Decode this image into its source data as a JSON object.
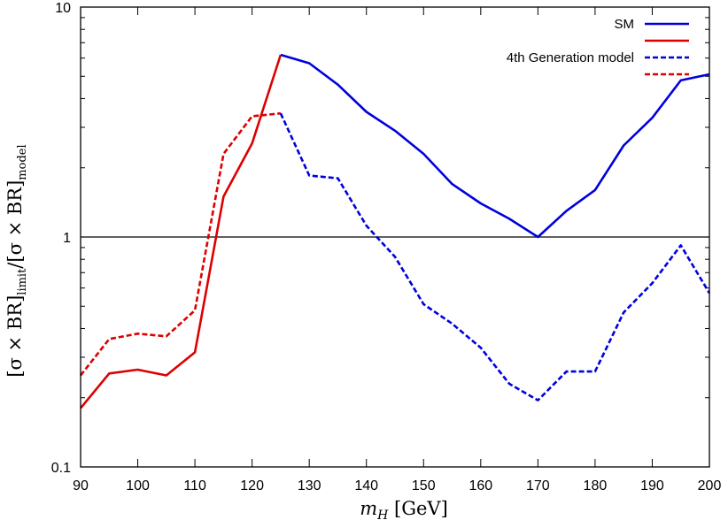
{
  "chart_data": {
    "type": "line",
    "xlabel_var": "m",
    "xlabel_sub": "H",
    "xlabel_unit": " [GeV]",
    "ylabel_left": "[σ × BR]",
    "ylabel_left_sub": "limit",
    "ylabel_mid": "/[σ × BR]",
    "ylabel_right_sub": "model",
    "xlim": [
      90,
      200
    ],
    "ylim": [
      0.1,
      10
    ],
    "yscale": "log",
    "x_ticks": [
      "90",
      "100",
      "110",
      "120",
      "130",
      "140",
      "150",
      "160",
      "170",
      "180",
      "190",
      "200"
    ],
    "y_ticks": [
      "0.1",
      "1",
      "10"
    ],
    "reference_line": 1,
    "legend_position": "top-right",
    "legend": [
      {
        "label": "SM",
        "color": "#0000dd",
        "dash": "solid"
      },
      {
        "label": "",
        "color": "#dd0000",
        "dash": "solid"
      },
      {
        "label": "4th Generation model",
        "color": "#0000dd",
        "dash": "dashed"
      },
      {
        "label": "",
        "color": "#dd0000",
        "dash": "dashed"
      }
    ],
    "series": [
      {
        "color": "#dd0000",
        "dash": "solid",
        "x": [
          90,
          95,
          100,
          105,
          110,
          115,
          120,
          125
        ],
        "y": [
          0.18,
          0.255,
          0.265,
          0.25,
          0.315,
          1.5,
          2.55,
          6.2
        ]
      },
      {
        "color": "#0000dd",
        "dash": "solid",
        "x": [
          125,
          130,
          135,
          140,
          145,
          150,
          155,
          160,
          165,
          170,
          175,
          180,
          185,
          190,
          195,
          200
        ],
        "y": [
          6.2,
          5.7,
          4.6,
          3.5,
          2.9,
          2.3,
          1.7,
          1.4,
          1.2,
          1.0,
          1.3,
          1.6,
          2.5,
          3.3,
          4.8,
          5.1
        ]
      },
      {
        "color": "#dd0000",
        "dash": "dashed",
        "x": [
          90,
          95,
          100,
          105,
          110,
          115,
          120,
          125
        ],
        "y": [
          0.25,
          0.36,
          0.38,
          0.37,
          0.48,
          2.3,
          3.35,
          3.45
        ]
      },
      {
        "color": "#0000dd",
        "dash": "dashed",
        "x": [
          125,
          130,
          135,
          140,
          145,
          150,
          155,
          160,
          165,
          170,
          175,
          180,
          185,
          190,
          195,
          200
        ],
        "y": [
          3.45,
          1.85,
          1.8,
          1.12,
          0.82,
          0.51,
          0.42,
          0.33,
          0.23,
          0.195,
          0.26,
          0.26,
          0.47,
          0.63,
          0.92,
          0.57
        ]
      }
    ]
  }
}
